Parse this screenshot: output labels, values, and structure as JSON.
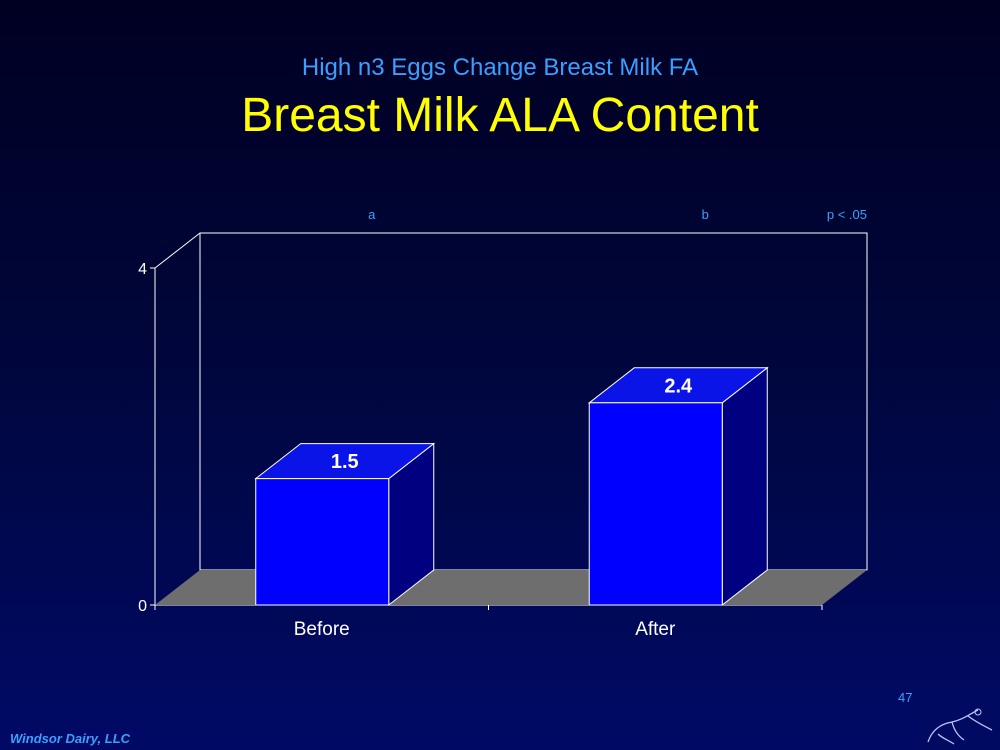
{
  "slide": {
    "subtitle": "High n3 Eggs Change Breast Milk FA",
    "title": "Breast Milk  ALA Content",
    "footer": "Windsor Dairy, LLC",
    "page_number": "47"
  },
  "colors": {
    "background": "#000a66",
    "subtitle": "#3aa0ff",
    "title": "#ffff00",
    "bar_front": "#0000ff",
    "bar_top": "#0a14e6",
    "bar_side": "#000080",
    "floor": "#6e6e6e",
    "annotation": "#3aa0ff"
  },
  "chart_data": {
    "type": "bar",
    "categories": [
      "Before",
      "After"
    ],
    "values": [
      1.5,
      2.4
    ],
    "value_labels": [
      "1.5",
      "2.4"
    ],
    "significance_letters": [
      "a",
      "b"
    ],
    "annotation": "p < .05",
    "ylim": [
      0,
      4
    ],
    "yticks": [
      0,
      4
    ],
    "xlabel": "",
    "ylabel": "",
    "grid": false,
    "style": "3d"
  }
}
